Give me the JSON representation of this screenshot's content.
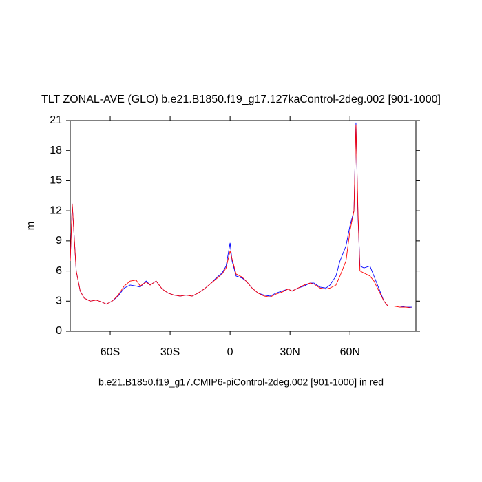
{
  "chart_data": {
    "type": "line",
    "title": "TLT ZONAL-AVE (GLO) b.e21.B1850.f19_g17.127kaControl-2deg.002 [901-1000]",
    "x_label": "b.e21.B1850.f19_g17.CMIP6-piControl-2deg.002 [901-1000] in red",
    "y_label": "m",
    "x": [
      -80,
      -79,
      -77,
      -75,
      -73,
      -70,
      -67,
      -64,
      -62,
      -59,
      -56,
      -53,
      -50,
      -47,
      -45,
      -42,
      -40,
      -37,
      -34,
      -31,
      -28,
      -25,
      -22,
      -19,
      -16,
      -13,
      -10,
      -7,
      -4,
      -2,
      0,
      1,
      3,
      6,
      8,
      11,
      14,
      17,
      20,
      23,
      26,
      29,
      31,
      34,
      37,
      40,
      42,
      45,
      48,
      50,
      53,
      55,
      58,
      60,
      62,
      63,
      64,
      65,
      67,
      70,
      72,
      75,
      77,
      79,
      82,
      85,
      88,
      91
    ],
    "series": [
      {
        "color": "#0000ff",
        "values": [
          7,
          12.7,
          6,
          4,
          3.3,
          3.0,
          3.1,
          2.9,
          2.7,
          3.0,
          3.5,
          4.3,
          4.6,
          4.5,
          4.4,
          5.0,
          4.6,
          5.0,
          4.2,
          3.8,
          3.6,
          3.5,
          3.6,
          3.5,
          3.8,
          4.2,
          4.7,
          5.3,
          5.8,
          6.5,
          8.8,
          7.0,
          5.5,
          5.3,
          5.0,
          4.3,
          3.8,
          3.6,
          3.5,
          3.8,
          4.0,
          4.2,
          4.0,
          4.3,
          4.5,
          4.8,
          4.8,
          4.4,
          4.3,
          4.6,
          5.5,
          7.0,
          8.5,
          10.5,
          12.0,
          20.8,
          11.5,
          6.5,
          6.3,
          6.5,
          5.5,
          4.0,
          3.0,
          2.5,
          2.5,
          2.5,
          2.4,
          2.4
        ]
      },
      {
        "color": "#ff0000",
        "values": [
          7,
          12.7,
          6,
          4,
          3.3,
          3.0,
          3.1,
          2.9,
          2.7,
          3.0,
          3.6,
          4.5,
          5.0,
          5.1,
          4.5,
          4.9,
          4.6,
          5.0,
          4.2,
          3.8,
          3.6,
          3.5,
          3.6,
          3.5,
          3.8,
          4.2,
          4.7,
          5.2,
          5.7,
          6.3,
          8.0,
          7.2,
          5.7,
          5.4,
          5.0,
          4.3,
          3.8,
          3.5,
          3.4,
          3.7,
          3.9,
          4.2,
          4.0,
          4.3,
          4.6,
          4.8,
          4.7,
          4.3,
          4.2,
          4.3,
          4.6,
          5.5,
          7.0,
          10.0,
          12.0,
          20.6,
          12.0,
          6.0,
          5.8,
          5.5,
          5.0,
          3.8,
          3.0,
          2.5,
          2.5,
          2.4,
          2.4,
          2.3
        ]
      }
    ],
    "xlim": [
      -80,
      93
    ],
    "xticks": [
      {
        "value": -60,
        "label": "60S"
      },
      {
        "value": -30,
        "label": "30S"
      },
      0,
      {
        "value": 30,
        "label": "30N"
      },
      {
        "value": 60,
        "label": "60N"
      }
    ],
    "ylim": [
      0,
      21
    ],
    "yticks": [
      0,
      3,
      6,
      9,
      12,
      15,
      18,
      21
    ]
  }
}
